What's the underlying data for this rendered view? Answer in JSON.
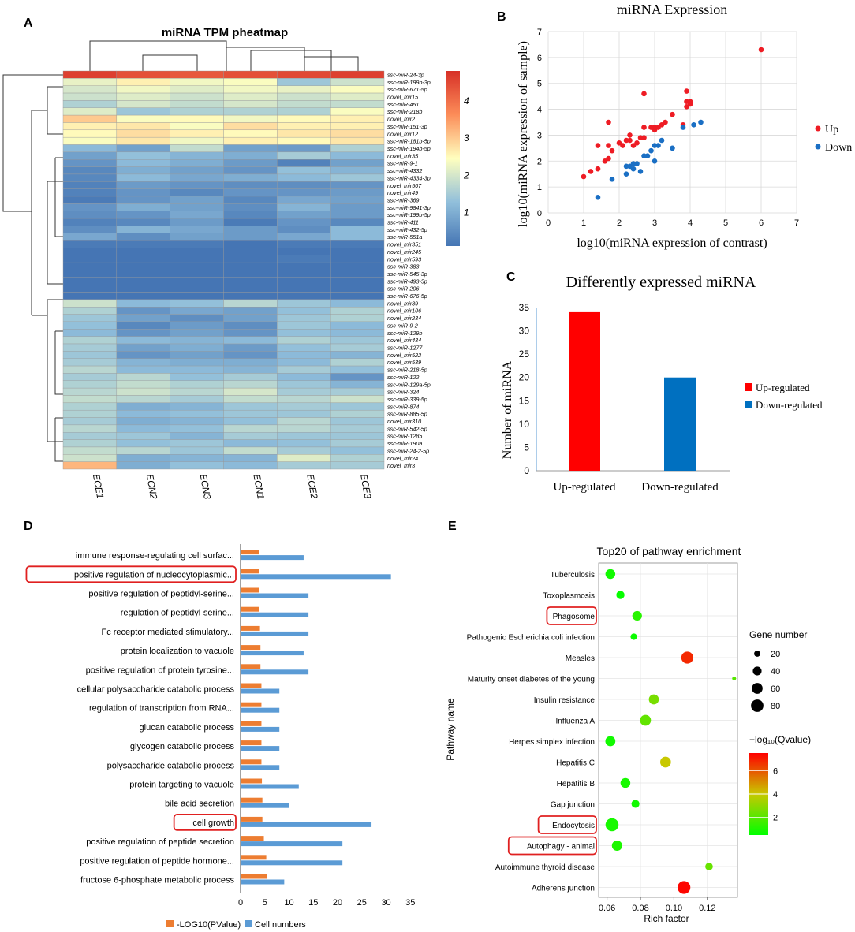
{
  "panel_letters": {
    "a": "A",
    "b": "B",
    "c": "C",
    "d": "D",
    "e": "E"
  },
  "chart_data": [
    {
      "id": "A",
      "type": "heatmap",
      "title": "miRNA TPM pheatmap",
      "columns": [
        "ECE1",
        "ECN2",
        "ECN3",
        "ECN1",
        "ECE2",
        "ECE3"
      ],
      "rows": [
        "ssc-miR-24-3p",
        "ssc-miR-199b-3p",
        "ssc-miR-671-5p",
        "novel_mir15",
        "ssc-miR-451",
        "ssc-miR-218b",
        "novel_mir2",
        "ssc-miR-151-3p",
        "novel_mir12",
        "ssc-miR-181b-5p",
        "ssc-miR-194b-5p",
        "novel_mir35",
        "ssc-miR-9-1",
        "ssc-miR-4332",
        "ssc-miR-4334-3p",
        "novel_mir567",
        "novel_mir49",
        "ssc-miR-369",
        "ssc-miR-9841-3p",
        "ssc-miR-199b-5p",
        "ssc-miR-411",
        "ssc-miR-432-5p",
        "ssc-miR-551a",
        "novel_mir351",
        "novel_mir245",
        "novel_mir593",
        "ssc-miR-383",
        "ssc-miR-545-3p",
        "ssc-miR-493-5p",
        "ssc-miR-206",
        "ssc-miR-676-5p",
        "novel_mir89",
        "novel_mir106",
        "novel_mir234",
        "ssc-miR-9-2",
        "ssc-miR-129b",
        "novel_mir434",
        "ssc-miR-1277",
        "novel_mir522",
        "novel_mir539",
        "ssc-miR-218-5p",
        "ssc-miR-122",
        "ssc-miR-129a-5p",
        "ssc-miR-324",
        "ssc-miR-339-5p",
        "ssc-miR-874",
        "ssc-miR-885-5p",
        "novel_mir310",
        "ssc-miR-542-5p",
        "ssc-miR-1285",
        "ssc-miR-190a",
        "ssc-miR-24-2-5p",
        "novel_mir24",
        "novel_mir3"
      ],
      "values": [
        [
          4.6,
          4.4,
          4.3,
          4.4,
          4.5,
          4.6
        ],
        [
          2.2,
          2.6,
          2.3,
          2.4,
          1.4,
          1.9
        ],
        [
          2.0,
          2.3,
          2.1,
          2.3,
          2.2,
          2.4
        ],
        [
          1.9,
          2.1,
          1.9,
          2.1,
          1.9,
          2.1
        ],
        [
          1.6,
          2.0,
          1.8,
          2.0,
          1.8,
          1.8
        ],
        [
          2.1,
          1.4,
          1.6,
          1.6,
          1.6,
          2.4
        ],
        [
          3.0,
          2.4,
          2.5,
          2.3,
          2.5,
          2.6
        ],
        [
          2.6,
          2.7,
          2.4,
          2.8,
          2.6,
          2.6
        ],
        [
          2.5,
          2.8,
          2.6,
          2.5,
          2.7,
          2.8
        ],
        [
          2.4,
          2.7,
          2.3,
          2.6,
          2.5,
          2.7
        ],
        [
          1.2,
          0.8,
          1.8,
          0.8,
          0.7,
          1.6
        ],
        [
          0.8,
          1.3,
          1.1,
          1.0,
          1.5,
          1.2
        ],
        [
          0.6,
          1.2,
          1.0,
          0.7,
          0.3,
          0.8
        ],
        [
          0.4,
          1.0,
          0.8,
          0.6,
          1.3,
          1.1
        ],
        [
          0.4,
          1.2,
          0.9,
          1.0,
          1.2,
          1.4
        ],
        [
          0.3,
          0.7,
          0.6,
          0.5,
          0.5,
          0.6
        ],
        [
          0.3,
          0.6,
          0.4,
          0.6,
          0.6,
          0.7
        ],
        [
          0.2,
          0.6,
          0.8,
          0.4,
          0.9,
          0.8
        ],
        [
          0.6,
          1.0,
          0.8,
          0.5,
          1.1,
          0.7
        ],
        [
          0.5,
          0.6,
          0.9,
          0.4,
          0.8,
          0.7
        ],
        [
          0.3,
          0.4,
          0.7,
          0.2,
          0.6,
          0.4
        ],
        [
          0.5,
          1.1,
          0.9,
          0.7,
          0.5,
          1.2
        ],
        [
          0.9,
          0.5,
          0.8,
          0.7,
          0.9,
          1.2
        ],
        [
          0.2,
          0.2,
          0.2,
          0.1,
          0.2,
          0.2
        ],
        [
          0.1,
          0.1,
          0.1,
          0.1,
          0.1,
          0.1
        ],
        [
          0.1,
          0.1,
          0.1,
          0.1,
          0.2,
          0.1
        ],
        [
          0.1,
          0.1,
          0.1,
          0.1,
          0.1,
          0.1
        ],
        [
          0.1,
          0.1,
          0.1,
          0.1,
          0.1,
          0.1
        ],
        [
          0.1,
          0.1,
          0.1,
          0.1,
          0.1,
          0.1
        ],
        [
          0.1,
          0.1,
          0.1,
          0.1,
          0.1,
          0.1
        ],
        [
          0.1,
          0.1,
          0.1,
          0.1,
          0.1,
          0.1
        ],
        [
          1.9,
          1.2,
          1.3,
          1.7,
          1.4,
          1.2
        ],
        [
          1.6,
          0.6,
          0.9,
          0.8,
          1.3,
          1.6
        ],
        [
          1.4,
          0.8,
          0.5,
          0.8,
          1.4,
          1.6
        ],
        [
          1.3,
          0.4,
          0.7,
          0.5,
          1.4,
          1.2
        ],
        [
          1.2,
          0.6,
          0.8,
          0.6,
          1.3,
          1.2
        ],
        [
          1.6,
          1.2,
          1.1,
          1.2,
          1.6,
          1.4
        ],
        [
          1.5,
          0.8,
          1.0,
          0.7,
          1.3,
          1.5
        ],
        [
          1.4,
          0.6,
          0.8,
          0.6,
          1.2,
          1.1
        ],
        [
          1.5,
          1.1,
          1.0,
          1.0,
          1.2,
          1.6
        ],
        [
          1.7,
          1.2,
          1.2,
          1.1,
          1.5,
          1.3
        ],
        [
          1.5,
          1.7,
          1.3,
          1.5,
          1.2,
          0.6
        ],
        [
          1.6,
          1.8,
          1.6,
          1.7,
          1.4,
          1.1
        ],
        [
          1.7,
          1.9,
          1.7,
          2.0,
          1.5,
          1.5
        ],
        [
          1.8,
          1.7,
          1.5,
          1.8,
          1.7,
          1.9
        ],
        [
          1.6,
          1.0,
          1.1,
          1.4,
          1.5,
          1.4
        ],
        [
          1.6,
          1.2,
          1.3,
          1.4,
          1.4,
          1.6
        ],
        [
          1.5,
          1.0,
          1.1,
          1.3,
          1.7,
          1.4
        ],
        [
          1.7,
          1.2,
          1.3,
          1.7,
          1.7,
          1.5
        ],
        [
          1.5,
          1.4,
          1.1,
          1.5,
          1.4,
          1.4
        ],
        [
          1.6,
          1.3,
          1.4,
          1.2,
          1.3,
          1.5
        ],
        [
          1.8,
          1.7,
          1.4,
          1.8,
          1.5,
          1.3
        ],
        [
          1.9,
          1.0,
          1.1,
          1.1,
          2.1,
          1.6
        ],
        [
          3.2,
          1.0,
          1.3,
          1.2,
          1.5,
          1.5
        ]
      ],
      "colorbar_ticks": [
        "1",
        "2",
        "3",
        "4"
      ],
      "color_range": [
        0.1,
        4.8
      ]
    },
    {
      "id": "B",
      "type": "scatter",
      "title": "miRNA Expression",
      "xlabel": "log10(miRNA expression of contrast)",
      "ylabel": "log10(miRNA expression of sample)",
      "xlim": [
        0,
        7
      ],
      "ylim": [
        0,
        7
      ],
      "xticks": [
        "0",
        "1",
        "2",
        "3",
        "4",
        "5",
        "6",
        "7"
      ],
      "yticks": [
        "0",
        "1",
        "2",
        "3",
        "4",
        "5",
        "6",
        "7"
      ],
      "series": [
        {
          "name": "Up",
          "color": "#ee1c24",
          "points": [
            [
              1.0,
              1.4
            ],
            [
              1.2,
              1.6
            ],
            [
              1.4,
              1.7
            ],
            [
              1.4,
              2.6
            ],
            [
              1.6,
              2.0
            ],
            [
              1.7,
              2.1
            ],
            [
              1.7,
              2.6
            ],
            [
              1.7,
              3.5
            ],
            [
              1.8,
              2.4
            ],
            [
              2.0,
              2.7
            ],
            [
              2.1,
              2.6
            ],
            [
              2.2,
              2.8
            ],
            [
              2.3,
              3.0
            ],
            [
              2.4,
              2.6
            ],
            [
              2.5,
              2.7
            ],
            [
              2.6,
              2.9
            ],
            [
              2.7,
              2.9
            ],
            [
              2.7,
              3.3
            ],
            [
              2.7,
              4.6
            ],
            [
              2.9,
              3.3
            ],
            [
              3.0,
              3.2
            ],
            [
              3.0,
              3.3
            ],
            [
              3.1,
              3.3
            ],
            [
              3.2,
              3.4
            ],
            [
              3.3,
              3.5
            ],
            [
              3.5,
              3.8
            ],
            [
              3.8,
              3.4
            ],
            [
              3.9,
              4.3
            ],
            [
              3.9,
              4.7
            ],
            [
              4.0,
              4.2
            ],
            [
              4.0,
              4.3
            ],
            [
              3.9,
              4.1
            ],
            [
              6.0,
              6.3
            ],
            [
              2.3,
              2.8
            ]
          ]
        },
        {
          "name": "Down",
          "color": "#1a6fc4",
          "points": [
            [
              1.4,
              0.6
            ],
            [
              1.8,
              1.3
            ],
            [
              2.2,
              1.5
            ],
            [
              2.3,
              1.8
            ],
            [
              2.4,
              1.9
            ],
            [
              2.5,
              1.9
            ],
            [
              2.6,
              1.6
            ],
            [
              2.8,
              2.2
            ],
            [
              2.9,
              2.4
            ],
            [
              3.0,
              2.6
            ],
            [
              3.1,
              2.6
            ],
            [
              3.2,
              2.8
            ],
            [
              3.5,
              2.5
            ],
            [
              3.8,
              3.3
            ],
            [
              4.1,
              3.4
            ],
            [
              4.3,
              3.5
            ],
            [
              2.2,
              1.8
            ],
            [
              2.4,
              1.7
            ],
            [
              3.0,
              2.0
            ],
            [
              2.7,
              2.2
            ]
          ]
        }
      ]
    },
    {
      "id": "C",
      "type": "bar",
      "title": "Differently expressed miRNA",
      "categories": [
        "Up-regulated",
        "Down-regulated"
      ],
      "values": [
        34,
        20
      ],
      "colors": [
        "#ff0000",
        "#0070c0"
      ],
      "ylabel": "Number of miRNA",
      "ylim": [
        0,
        35
      ],
      "yticks": [
        "0",
        "5",
        "10",
        "15",
        "20",
        "25",
        "30",
        "35"
      ],
      "legend": [
        {
          "label": "Up-regulated",
          "color": "#ff0000"
        },
        {
          "label": "Down-regulated",
          "color": "#0070c0"
        }
      ]
    },
    {
      "id": "D",
      "type": "bar",
      "orientation": "horizontal",
      "categories": [
        "immune response-regulating cell surfac...",
        "positive regulation of nucleocytoplasmic...",
        "positive regulation of peptidyl-serine...",
        "regulation of peptidyl-serine...",
        "Fc receptor mediated stimulatory...",
        "protein localization to vacuole",
        "positive regulation of protein tyrosine...",
        "cellular polysaccharide catabolic process",
        "regulation of transcription from RNA...",
        "glucan catabolic process",
        "glycogen catabolic process",
        "polysaccharide catabolic process",
        "protein targeting to vacuole",
        "bile acid secretion",
        "cell growth",
        "positive regulation of peptide secretion",
        "positive regulation of peptide hormone...",
        "fructose 6-phosphate metabolic process"
      ],
      "highlighted": [
        "positive regulation of nucleocytoplasmic...",
        "cell growth"
      ],
      "series": [
        {
          "name": "-LOG10(PValue)",
          "color": "#ed7d31",
          "values": [
            3.8,
            3.8,
            3.9,
            3.9,
            4.0,
            4.1,
            4.1,
            4.3,
            4.3,
            4.3,
            4.3,
            4.3,
            4.4,
            4.5,
            4.5,
            4.8,
            5.3,
            5.4
          ]
        },
        {
          "name": "Cell numbers",
          "color": "#5b9bd5",
          "values": [
            13,
            31,
            14,
            14,
            14,
            13,
            14,
            8,
            8,
            8,
            8,
            8,
            12,
            10,
            27,
            21,
            21,
            9
          ]
        }
      ],
      "xlim": [
        0,
        35
      ],
      "xticks": [
        "0",
        "5",
        "10",
        "15",
        "20",
        "25",
        "30",
        "35"
      ]
    },
    {
      "id": "E",
      "type": "scatter",
      "title": "Top20 of pathway enrichment",
      "xlabel": "Rich factor",
      "ylabel": "Pathway name",
      "categories": [
        "Tuberculosis",
        "Toxoplasmosis",
        "Phagosome",
        "Pathogenic Escherichia coli infection",
        "Measles",
        "Maturity onset diabetes of the young",
        "Insulin resistance",
        "Influenza A",
        "Herpes simplex infection",
        "Hepatitis C",
        "Hepatitis B",
        "Gap junction",
        "Endocytosis",
        "Autophagy - animal",
        "Autoimmune thyroid disease",
        "Adherens junction"
      ],
      "highlighted": [
        "Phagosome",
        "Endocytosis",
        "Autophagy - animal"
      ],
      "points": [
        {
          "x": 0.062,
          "gene_number": 50,
          "qvalue": 0.8
        },
        {
          "x": 0.068,
          "gene_number": 35,
          "qvalue": 0.6
        },
        {
          "x": 0.078,
          "gene_number": 48,
          "qvalue": 1.2
        },
        {
          "x": 0.076,
          "gene_number": 22,
          "qvalue": 0.7
        },
        {
          "x": 0.108,
          "gene_number": 75,
          "qvalue": 6.8
        },
        {
          "x": 0.136,
          "gene_number": 8,
          "qvalue": 2.0
        },
        {
          "x": 0.088,
          "gene_number": 52,
          "qvalue": 2.6
        },
        {
          "x": 0.083,
          "gene_number": 62,
          "qvalue": 2.2
        },
        {
          "x": 0.062,
          "gene_number": 52,
          "qvalue": 0.8
        },
        {
          "x": 0.095,
          "gene_number": 60,
          "qvalue": 4.0
        },
        {
          "x": 0.071,
          "gene_number": 50,
          "qvalue": 0.9
        },
        {
          "x": 0.077,
          "gene_number": 33,
          "qvalue": 0.8
        },
        {
          "x": 0.063,
          "gene_number": 88,
          "qvalue": 0.9
        },
        {
          "x": 0.066,
          "gene_number": 55,
          "qvalue": 1.0
        },
        {
          "x": 0.121,
          "gene_number": 30,
          "qvalue": 2.3
        },
        {
          "x": 0.106,
          "gene_number": 85,
          "qvalue": 7.4
        }
      ],
      "xlim": [
        0.055,
        0.138
      ],
      "xticks": [
        0.06,
        0.08,
        0.1,
        0.12
      ],
      "xtick_labels": [
        "0.06",
        "0.08",
        "0.10",
        "0.12"
      ],
      "size_legend_title": "Gene number",
      "size_legend": [
        20,
        40,
        60,
        80
      ],
      "size_legend_labels": [
        "20",
        "40",
        "60",
        "80"
      ],
      "color_legend_title": "−log₁₀(Qvalue)",
      "color_range": [
        0.5,
        7.5
      ],
      "color_ticks": [
        2,
        4,
        6
      ],
      "color_tick_labels": [
        "2",
        "4",
        "6"
      ]
    }
  ]
}
